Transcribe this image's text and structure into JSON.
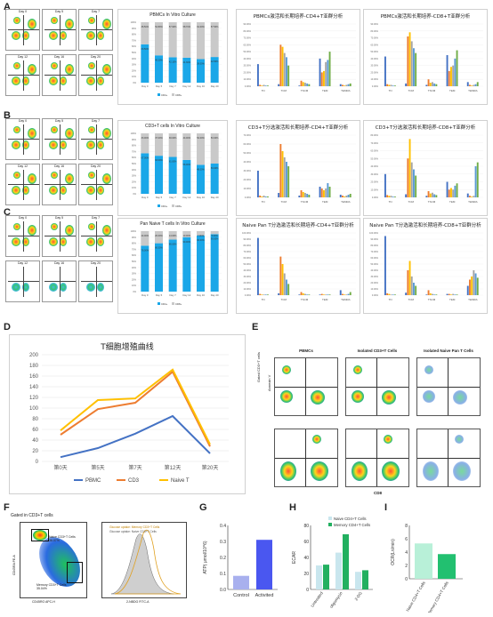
{
  "panels": {
    "A": "A",
    "B": "B",
    "C": "C",
    "D": "D",
    "E": "E",
    "F": "F",
    "G": "G",
    "H": "H",
    "I": "I"
  },
  "flow_days": [
    "Day 0",
    "Day 5",
    "Day 7",
    "Day 12",
    "Day 16",
    "Day 20"
  ],
  "stacked_charts": [
    {
      "title": "PBMCs In Vitro Culture",
      "legend": [
        "CD4+",
        "CD8+"
      ],
      "days": [
        "Day 0",
        "Day 5",
        "Day 7",
        "Day 12",
        "Day 16",
        "Day 20"
      ],
      "cd4": [
        63.5,
        45.2,
        42.1,
        41.3,
        39.0,
        42.5
      ],
      "cd8": [
        36.5,
        54.8,
        57.9,
        58.7,
        61.0,
        57.5
      ]
    },
    {
      "title": "CD3+T cells In Vitro Culture",
      "legend": [
        "CD4+",
        "CD8+"
      ],
      "days": [
        "Day 0",
        "Day 5",
        "Day 7",
        "Day 12",
        "Day 16",
        "Day 20"
      ],
      "cd4": [
        67.0,
        63.0,
        61.0,
        56.0,
        48.0,
        50.0
      ],
      "cd8": [
        33.0,
        37.0,
        39.0,
        44.0,
        52.0,
        50.0
      ]
    },
    {
      "title": "Pan Naive T cells In Vitro Culture",
      "legend": [
        "CD4+",
        "CD8+"
      ],
      "days": [
        "Day 0",
        "Day 5",
        "Day 7",
        "Day 12",
        "Day 16",
        "Day 20"
      ],
      "cd4": [
        76.0,
        80.0,
        86.0,
        90.0,
        93.0,
        95.0
      ],
      "cd8": [
        24.0,
        20.0,
        14.0,
        10.0,
        7.0,
        5.0
      ]
    }
  ],
  "subset_charts": [
    {
      "title": "PBMCs激活和长期培养-CD4+T亚群分析",
      "yticks": [
        "90.00%",
        "80.00%",
        "70.00%",
        "60.00%",
        "50.00%",
        "40.00%",
        "30.00%",
        "20.00%",
        "10.00%",
        "0.00%"
      ],
      "categories": [
        "TN",
        "TCM",
        "TSCM",
        "TEM",
        "TEMRA"
      ],
      "series": [
        [
          32,
          3,
          1,
          40,
          3
        ],
        [
          2,
          60,
          8,
          20,
          2
        ],
        [
          1,
          57,
          6,
          22,
          1
        ],
        [
          2,
          48,
          5,
          35,
          2
        ],
        [
          1,
          42,
          4,
          38,
          3
        ],
        [
          1,
          30,
          3,
          50,
          4
        ]
      ]
    },
    {
      "title": "PBMCs激活和长期培养-CD8+T亚群分析",
      "yticks": [
        "90.00%",
        "80.00%",
        "70.00%",
        "60.00%",
        "50.00%",
        "40.00%",
        "30.00%",
        "20.00%",
        "10.00%",
        "0.00%"
      ],
      "categories": [
        "TN",
        "TCM",
        "TSCM",
        "TEM",
        "TEMRA"
      ],
      "series": [
        [
          43,
          4,
          2,
          45,
          6
        ],
        [
          3,
          72,
          10,
          22,
          2
        ],
        [
          2,
          78,
          5,
          28,
          1
        ],
        [
          2,
          65,
          6,
          30,
          2
        ],
        [
          1,
          55,
          4,
          40,
          3
        ],
        [
          1,
          48,
          3,
          52,
          6
        ]
      ]
    },
    {
      "title": "CD3+T分选激活和长期培养-CD4+T亚群分析",
      "yticks": [
        "70.00%",
        "60.00%",
        "50.00%",
        "40.00%",
        "30.00%",
        "20.00%",
        "10.00%",
        "0.00%"
      ],
      "categories": [
        "TN",
        "TCM",
        "TSCM",
        "TEM",
        "TEMRA"
      ],
      "series": [
        [
          30,
          5,
          2,
          12,
          3
        ],
        [
          2,
          60,
          8,
          10,
          2
        ],
        [
          1,
          52,
          6,
          8,
          1
        ],
        [
          2,
          45,
          5,
          10,
          2
        ],
        [
          1,
          40,
          4,
          16,
          3
        ],
        [
          1,
          35,
          3,
          12,
          4
        ]
      ]
    },
    {
      "title": "CD3+T分选激活和长期培养-CD8+T亚群分析",
      "yticks": [
        "80.00%",
        "70.00%",
        "60.00%",
        "50.00%",
        "40.00%",
        "30.00%",
        "20.00%",
        "10.00%",
        "0.00%"
      ],
      "categories": [
        "TN",
        "TCM",
        "TSCM",
        "TEM",
        "TEMRA"
      ],
      "series": [
        [
          30,
          4,
          2,
          20,
          5
        ],
        [
          3,
          50,
          8,
          10,
          2
        ],
        [
          2,
          75,
          5,
          12,
          1
        ],
        [
          2,
          45,
          6,
          10,
          2
        ],
        [
          1,
          36,
          4,
          15,
          40
        ],
        [
          1,
          28,
          3,
          18,
          45
        ]
      ]
    },
    {
      "title": "Naive Pan T分选激活和长期培养-CD4+T亚群分析",
      "yticks": [
        "100.00%",
        "90.00%",
        "80.00%",
        "70.00%",
        "60.00%",
        "50.00%",
        "40.00%",
        "30.00%",
        "20.00%",
        "10.00%",
        "0.00%"
      ],
      "categories": [
        "TN",
        "TCM",
        "TSCM",
        "TEM",
        "TEMRA"
      ],
      "series": [
        [
          92,
          3,
          1,
          1,
          8
        ],
        [
          2,
          62,
          5,
          2,
          2
        ],
        [
          1,
          50,
          3,
          1,
          1
        ],
        [
          1,
          35,
          2,
          1,
          1
        ],
        [
          1,
          25,
          1,
          1,
          2
        ],
        [
          1,
          18,
          1,
          1,
          5
        ]
      ]
    },
    {
      "title": "Naive Pan T分选激活和长期培养-CD8+T亚群分析",
      "yticks": [
        "100.00%",
        "90.00%",
        "80.00%",
        "70.00%",
        "60.00%",
        "50.00%",
        "40.00%",
        "30.00%",
        "20.00%",
        "10.00%",
        "0.00%"
      ],
      "categories": [
        "TN",
        "TCM",
        "TSCM",
        "TEM",
        "TEMRA"
      ],
      "series": [
        [
          95,
          4,
          1,
          2,
          15
        ],
        [
          3,
          40,
          8,
          2,
          25
        ],
        [
          2,
          55,
          3,
          1,
          30
        ],
        [
          1,
          30,
          2,
          2,
          40
        ],
        [
          1,
          20,
          1,
          1,
          35
        ],
        [
          1,
          15,
          1,
          1,
          28
        ]
      ]
    }
  ],
  "series_colors": [
    "#4472c4",
    "#ed7d31",
    "#ffc000",
    "#a5a5a5",
    "#5b9bd5",
    "#70ad47",
    "#2fc0a8"
  ],
  "chart_data": {
    "type": "line",
    "title": "T细胞增殖曲线",
    "categories": [
      "第0天",
      "第5天",
      "第7天",
      "第12天",
      "第20天"
    ],
    "yticks": [
      "200",
      "180",
      "160",
      "140",
      "120",
      "100",
      "80",
      "60",
      "40",
      "20",
      "0"
    ],
    "ylim": [
      0,
      200
    ],
    "series": [
      {
        "name": "PBMC",
        "color": "#4472c4",
        "values": [
          8,
          25,
          52,
          85,
          15
        ]
      },
      {
        "name": "CD3",
        "color": "#ed7d31",
        "values": [
          50,
          98,
          110,
          168,
          28
        ]
      },
      {
        "name": "Naive T",
        "color": "#ffc000",
        "values": [
          58,
          115,
          118,
          172,
          32
        ]
      }
    ]
  },
  "panelE": {
    "cols": [
      "PBMCs",
      "Isolated CD3+T Cells",
      "Isolated Naive Pan T Cells"
    ],
    "ylabel": "Annexin V",
    "xlabel": "CD8",
    "side": "Gated CD3+T cells"
  },
  "panelF": {
    "gate": "Gated in CD3+T cells",
    "naive": "Naive CD3+T Cells",
    "naive_pct": "36.07%",
    "memory": "Memory CD3+T Cells",
    "memory_pct": "35.04%",
    "xlabel": "CD45RO APC-H",
    "ylabel": "CD45RA PE-A",
    "hist_legend1": "Glucose uptake: Memory CD3+T Cells",
    "hist_legend2": "Glucose uptake: Naive CD3+T Cells",
    "hist_xlabel": "2-NBDG FITC-A"
  },
  "panelG": {
    "ylabel": "ATP( μmol/10^6)",
    "categories": [
      "Control",
      "Activited"
    ],
    "values": [
      0.085,
      0.31
    ],
    "yticks": [
      "0.4",
      "0.3",
      "0.2",
      "0.1",
      "0.0"
    ],
    "colors": [
      "#a8b0ee",
      "#4a57f0"
    ]
  },
  "panelH": {
    "ylabel": "ECAR",
    "categories": [
      "Untreated",
      "oligomycin",
      "2-DG"
    ],
    "legend": [
      "Naive CD4+T Cells",
      "Memory CD4+T Cells"
    ],
    "naive": [
      30,
      46,
      22
    ],
    "memory": [
      31,
      69,
      24
    ],
    "yticks": [
      "80",
      "60",
      "40",
      "20",
      "0"
    ]
  },
  "panelI": {
    "ylabel": "OCR(Ln/min)",
    "categories": [
      "Naive CD4+T Cells",
      "Memory CD4+T Cells"
    ],
    "values": [
      5.3,
      3.7
    ],
    "yticks": [
      "8",
      "6",
      "4",
      "2",
      "0"
    ],
    "colors": [
      "#b8f0d8",
      "#22c070"
    ]
  }
}
